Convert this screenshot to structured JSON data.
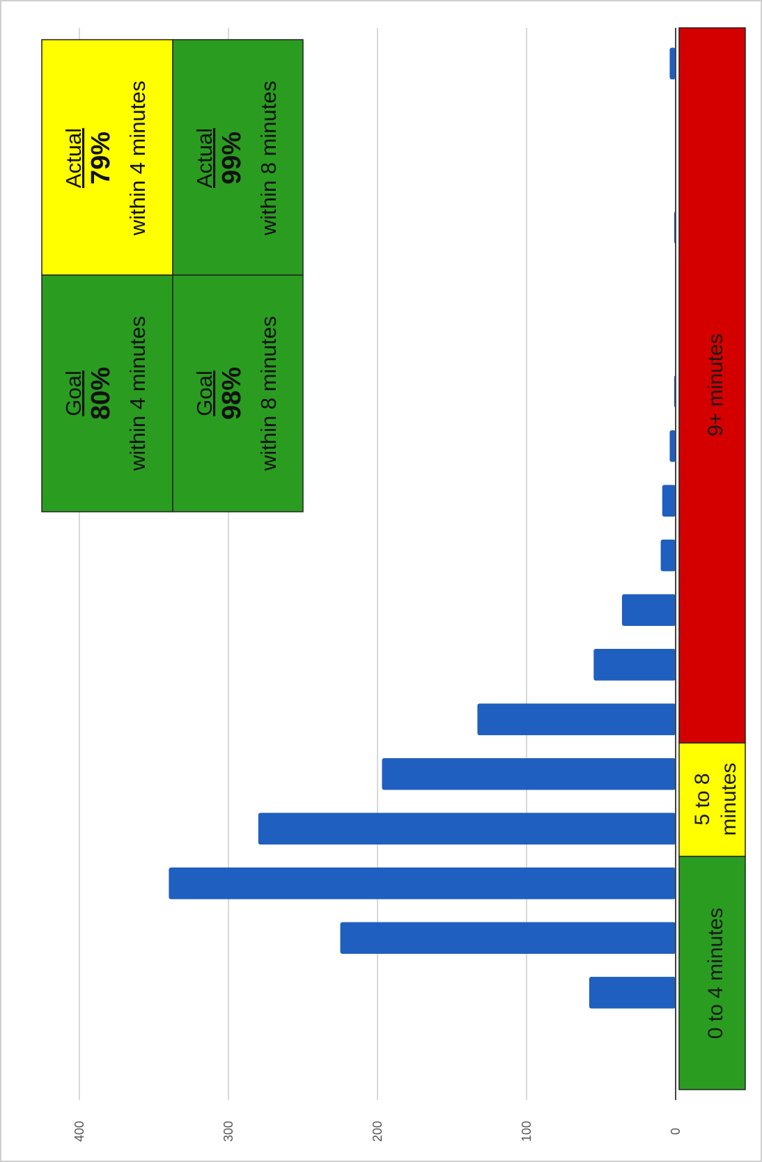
{
  "chart_data": {
    "type": "bar",
    "orientation": "rotated-90-clockwise",
    "categories": [
      "",
      "",
      "",
      "",
      "",
      "",
      "",
      "",
      "",
      "",
      "",
      "",
      "",
      "",
      "",
      "",
      "",
      ""
    ],
    "values": [
      58,
      225,
      340,
      280,
      197,
      133,
      55,
      36,
      10,
      9,
      4,
      1,
      0,
      0,
      1,
      0,
      0,
      4
    ],
    "value_axis": {
      "ticks": [
        0,
        100,
        200,
        300,
        400
      ],
      "tick_labels": [
        "0",
        "100",
        "200",
        "300",
        "400"
      ],
      "range": [
        0,
        400
      ],
      "gridlines": true
    },
    "bar_color": "#1f5fbf",
    "bands": [
      {
        "label": "0 to 4 minutes",
        "color": "#2a9d21"
      },
      {
        "label": "5 to 8 minutes",
        "color": "#ffff00"
      },
      {
        "label": "9+ minutes",
        "color": "#d40000"
      }
    ],
    "summary": {
      "goal_4": {
        "heading": "Goal",
        "value": "80%",
        "note": "within 4 minutes",
        "color": "#2a9d21"
      },
      "actual_4": {
        "heading": "Actual",
        "value": "79%",
        "note": "within 4 minutes",
        "color": "#ffff00"
      },
      "goal_8": {
        "heading": "Goal",
        "value": "98%",
        "note": "within 8 minutes",
        "color": "#2a9d21"
      },
      "actual_8": {
        "heading": "Actual",
        "value": "99%",
        "note": "within 8 minutes",
        "color": "#2a9d21"
      }
    }
  }
}
